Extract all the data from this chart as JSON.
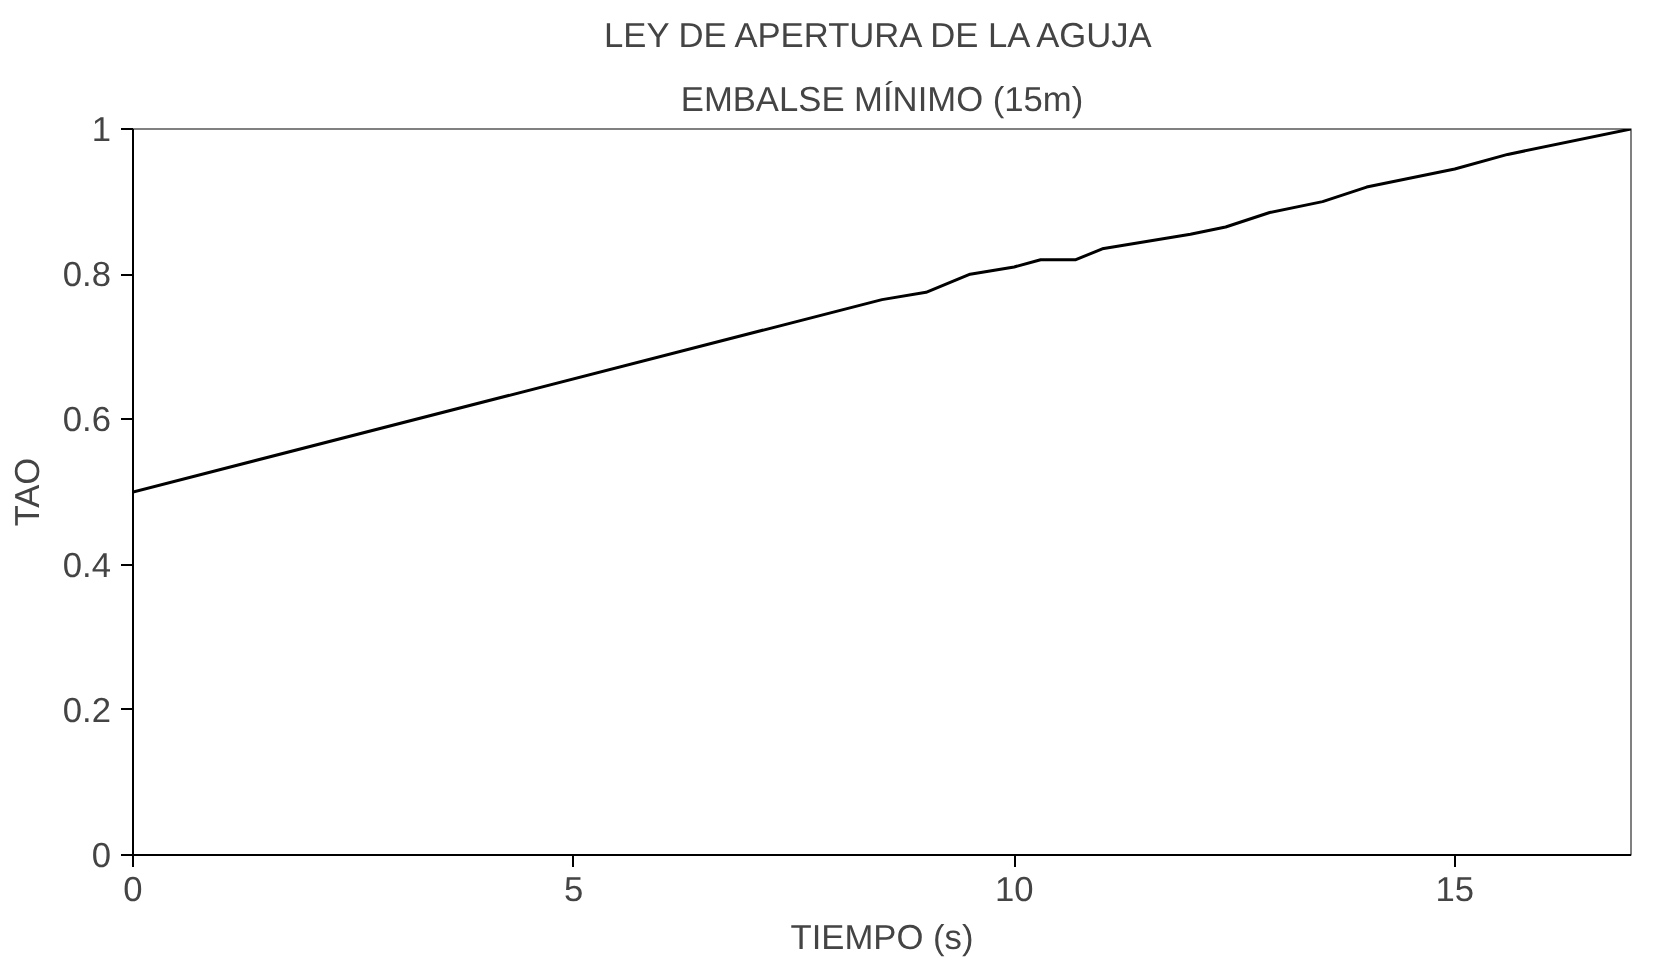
{
  "chart_data": {
    "type": "line",
    "title": "LEY DE APERTURA DE LA AGUJA",
    "subtitle": "EMBALSE MÍNIMO (15m)",
    "xlabel": "TIEMPO (s)",
    "ylabel": "TAO",
    "x": [
      0,
      8.5,
      9,
      9.5,
      10,
      10.3,
      10.7,
      11,
      12,
      12.4,
      12.9,
      13.5,
      14,
      15,
      15.6,
      17
    ],
    "series": [
      {
        "color": "#000000",
        "values": [
          0.5,
          0.765,
          0.775,
          0.8,
          0.81,
          0.82,
          0.82,
          0.835,
          0.855,
          0.865,
          0.885,
          0.9,
          0.92,
          0.945,
          0.965,
          1.0
        ]
      }
    ],
    "xlim": [
      0,
      17
    ],
    "ylim": [
      0,
      1
    ],
    "xticks": [
      0,
      5,
      10,
      15
    ],
    "yticks": [
      0,
      0.2,
      0.4,
      0.6,
      0.8,
      1
    ],
    "grid": false,
    "marker": "none",
    "line_style": "solid"
  }
}
